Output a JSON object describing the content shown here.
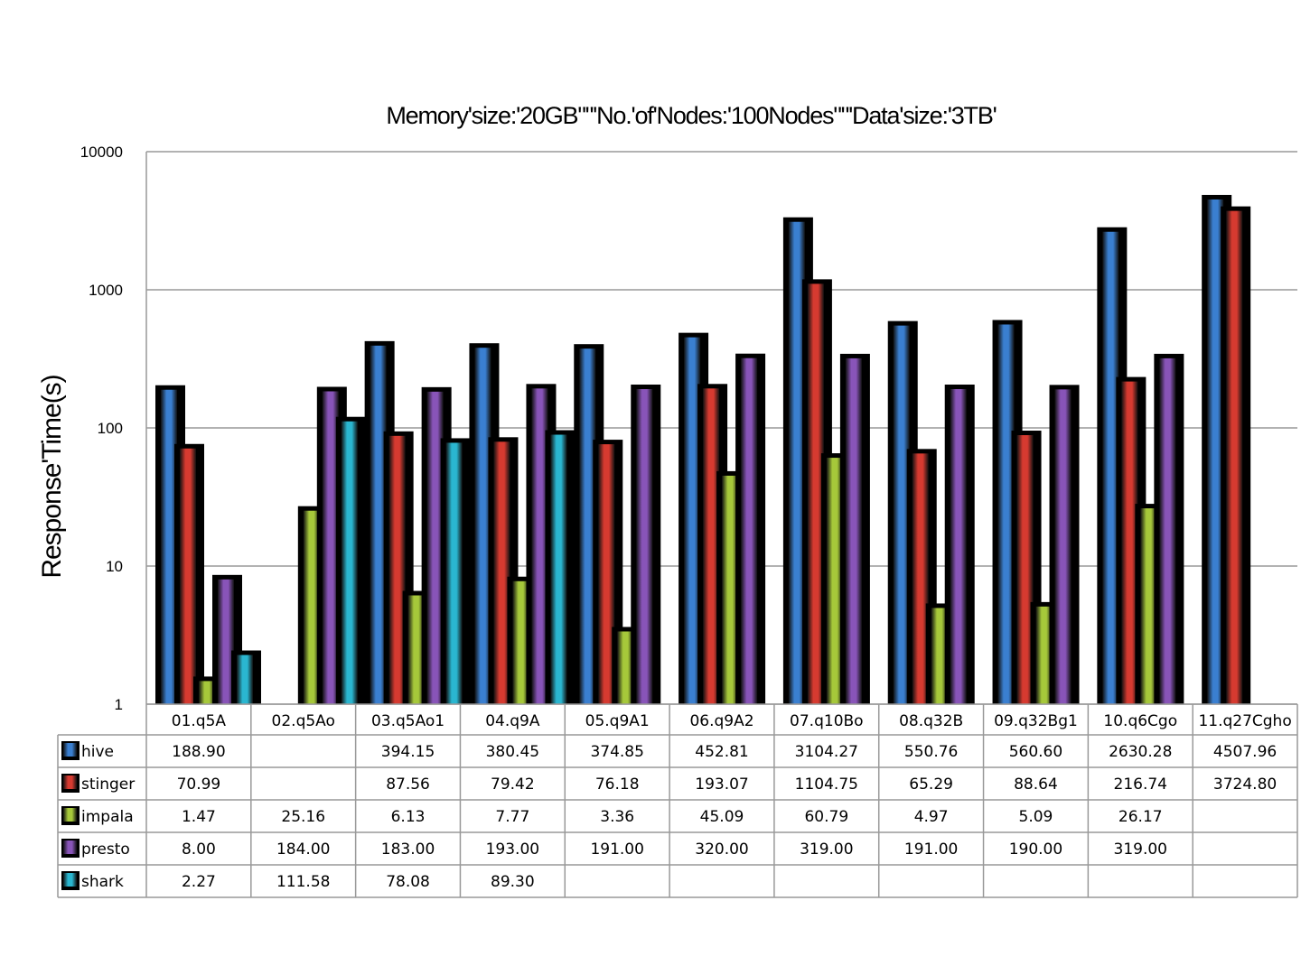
{
  "chart_data": {
    "type": "bar",
    "title": "Memory'size:'20GB\"\"'No.'of'Nodes:'100Nodes\"\"'Data'size:'3TB'",
    "xlabel": "",
    "ylabel": "Response'Time(s)",
    "yscale": "log",
    "ylim": [
      1,
      10000
    ],
    "yticks": [
      "1",
      "10",
      "100",
      "1000",
      "10000"
    ],
    "grid": true,
    "legend": "data-table-left",
    "categories": [
      "01.q5A",
      "02.q5Ao",
      "03.q5Ao1",
      "04.q9A",
      "05.q9A1",
      "06.q9A2",
      "07.q10Bo",
      "08.q32B",
      "09.q32Bg1",
      "10.q6Cgo",
      "11.q27Cgho"
    ],
    "series": [
      {
        "name": "hive",
        "color": "#3a7fd0",
        "values": [
          188.9,
          null,
          394.15,
          380.45,
          374.85,
          452.81,
          3104.27,
          550.76,
          560.6,
          2630.28,
          4507.96
        ],
        "labels": [
          "188.90",
          "",
          "394.15",
          "380.45",
          "374.85",
          "452.81",
          "3104.27",
          "550.76",
          "560.60",
          "2630.28",
          "4507.96"
        ]
      },
      {
        "name": "stinger",
        "color": "#d63a30",
        "values": [
          70.99,
          null,
          87.56,
          79.42,
          76.18,
          193.07,
          1104.75,
          65.29,
          88.64,
          216.74,
          3724.8
        ],
        "labels": [
          "70.99",
          "",
          "87.56",
          "79.42",
          "76.18",
          "193.07",
          "1104.75",
          "65.29",
          "88.64",
          "216.74",
          "3724.80"
        ]
      },
      {
        "name": "impala",
        "color": "#a6c83a",
        "values": [
          1.47,
          25.16,
          6.13,
          7.77,
          3.36,
          45.09,
          60.79,
          4.97,
          5.09,
          26.17,
          null
        ],
        "labels": [
          "1.47",
          "25.16",
          "6.13",
          "7.77",
          "3.36",
          "45.09",
          "60.79",
          "4.97",
          "5.09",
          "26.17",
          ""
        ]
      },
      {
        "name": "presto",
        "color": "#8854b8",
        "values": [
          8.0,
          184.0,
          183.0,
          193.0,
          191.0,
          320.0,
          319.0,
          191.0,
          190.0,
          319.0,
          null
        ],
        "labels": [
          "8.00",
          "184.00",
          "183.00",
          "193.00",
          "191.00",
          "320.00",
          "319.00",
          "191.00",
          "190.00",
          "319.00",
          ""
        ]
      },
      {
        "name": "shark",
        "color": "#2ab6d0",
        "values": [
          2.27,
          111.58,
          78.08,
          89.3,
          null,
          null,
          null,
          null,
          null,
          null,
          null
        ],
        "labels": [
          "2.27",
          "111.58",
          "78.08",
          "89.30",
          "",
          "",
          "",
          "",
          "",
          "",
          ""
        ]
      }
    ]
  }
}
